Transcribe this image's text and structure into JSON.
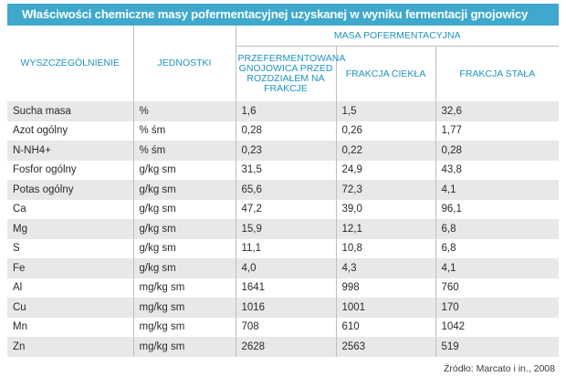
{
  "title": "Właściwości chemiczne masy pofermentacyjnej uzyskanej w wyniku fermentacji gnojowicy",
  "headers": {
    "col1": "WYSZCZEGÓLNIENIE",
    "col2": "JEDNOSTKI",
    "group": "MASA POFERMENTACYJNA",
    "sub1": "PRZEFERMENTOWANA GNOJOWICA PRZED ROZDZIAŁEM NA FRAKCJE",
    "sub2": "FRAKCJA CIEKŁA",
    "sub3": "FRAKCJA STAŁA"
  },
  "rows": [
    {
      "name": "Sucha masa",
      "unit": "%",
      "v1": "1,6",
      "v2": "1,5",
      "v3": "32,6"
    },
    {
      "name": "Azot ogólny",
      "unit": "% śm",
      "v1": "0,28",
      "v2": "0,26",
      "v3": "1,77"
    },
    {
      "name": "N-NH4+",
      "unit": "% śm",
      "v1": "0,23",
      "v2": "0,22",
      "v3": "0,28"
    },
    {
      "name": "Fosfor ogólny",
      "unit": "g/kg sm",
      "v1": "31,5",
      "v2": "24,9",
      "v3": "43,8"
    },
    {
      "name": "Potas ogólny",
      "unit": "g/kg sm",
      "v1": "65,6",
      "v2": "72,3",
      "v3": "4,1"
    },
    {
      "name": "Ca",
      "unit": "g/kg sm",
      "v1": "47,2",
      "v2": "39,0",
      "v3": "96,1"
    },
    {
      "name": "Mg",
      "unit": "g/kg sm",
      "v1": "15,9",
      "v2": "12,1",
      "v3": "6,8"
    },
    {
      "name": "S",
      "unit": "g/kg sm",
      "v1": "11,1",
      "v2": "10,8",
      "v3": "6,8"
    },
    {
      "name": "Fe",
      "unit": "g/kg sm",
      "v1": "4,0",
      "v2": "4,3",
      "v3": "4,1"
    },
    {
      "name": "Al",
      "unit": "mg/kg sm",
      "v1": "1641",
      "v2": "998",
      "v3": "760"
    },
    {
      "name": "Cu",
      "unit": "mg/kg sm",
      "v1": "1016",
      "v2": "1001",
      "v3": "170"
    },
    {
      "name": "Mn",
      "unit": "mg/kg sm",
      "v1": "708",
      "v2": "610",
      "v3": "1042"
    },
    {
      "name": "Zn",
      "unit": "mg/kg sm",
      "v1": "2628",
      "v2": "2563",
      "v3": "519"
    }
  ],
  "source": "Źródło: Marcato i in., 2008",
  "colors": {
    "title_bg": "#3ea9cc",
    "header_text": "#1f93bf",
    "stripe": "#e8e8e8"
  }
}
